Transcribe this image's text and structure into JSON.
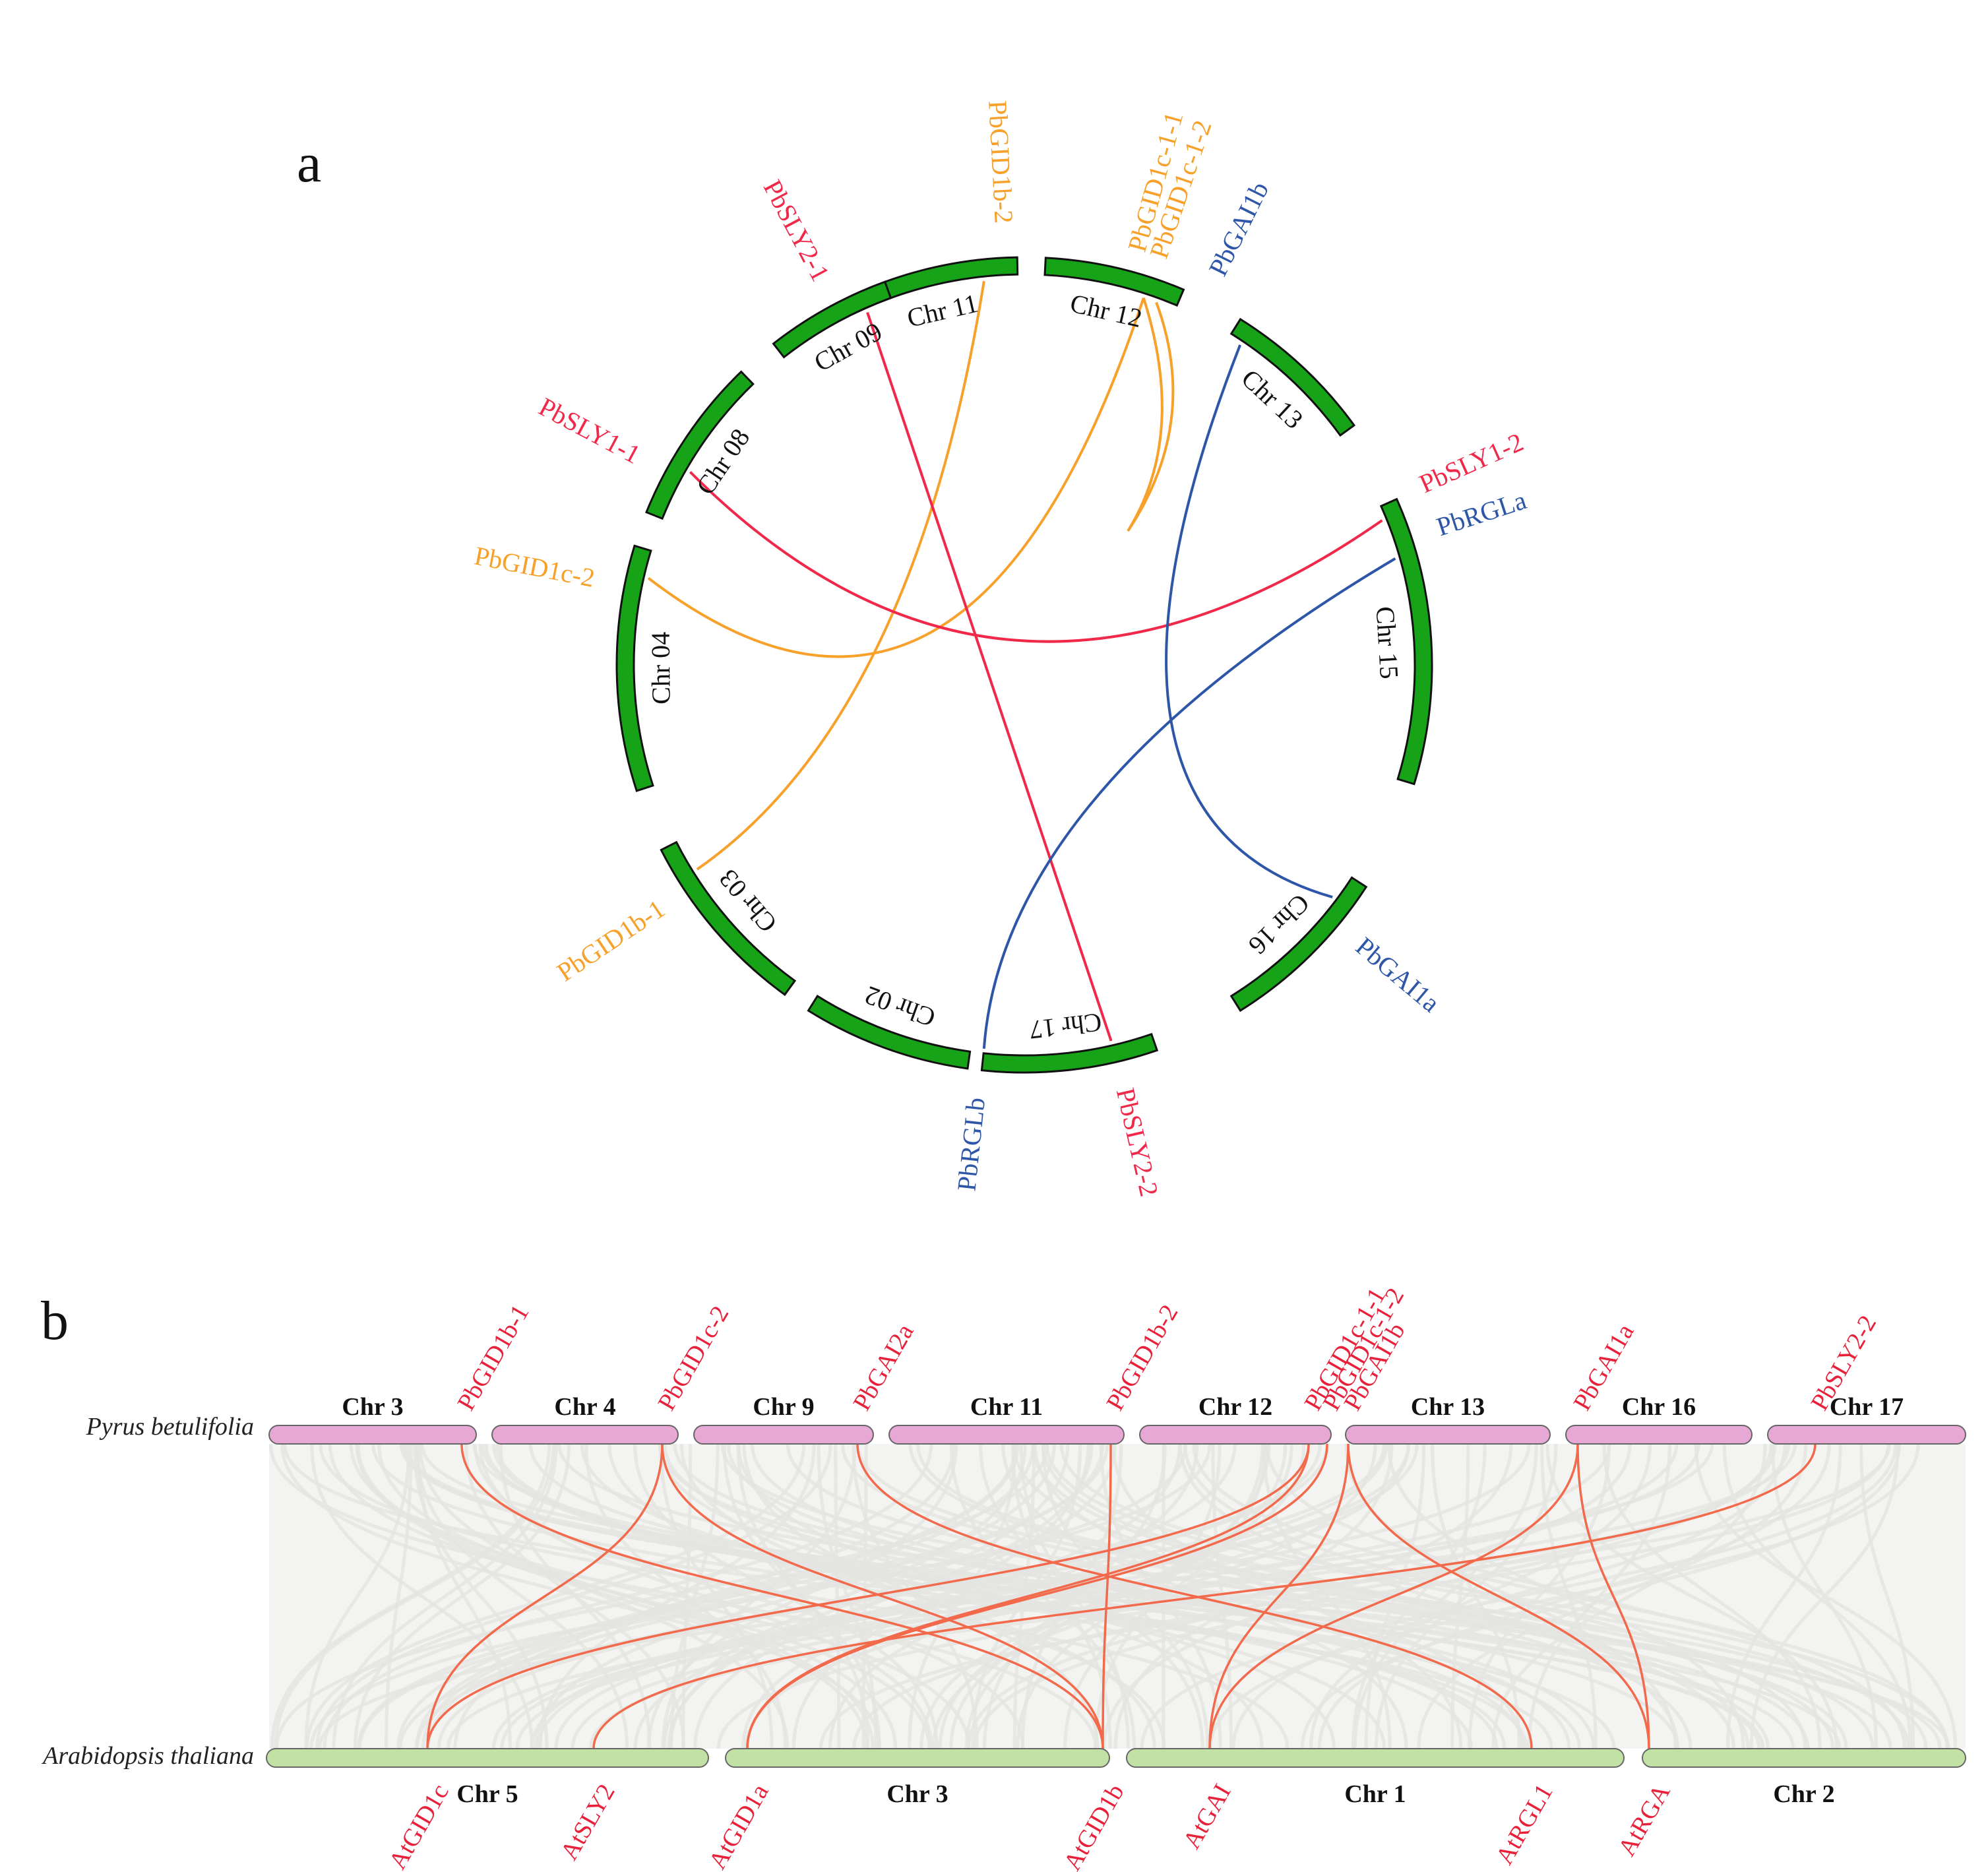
{
  "colors": {
    "gid1": "#f7a12b",
    "sly": "#f0284a",
    "della": "#2e56a8",
    "chrA": "#17a317",
    "pyrus_bar": "#e7a8d6",
    "arab_bar": "#c2e2a5",
    "synteny_bg": "#e4e4e2",
    "link_b": "#f26a4b",
    "label_b": "#e8203a"
  },
  "panel_a": {
    "label": "a",
    "chromosomes": [
      {
        "id": "Chr 11",
        "label": "Chr 11"
      },
      {
        "id": "Chr 12",
        "label": "Chr 12"
      },
      {
        "id": "Chr 13",
        "label": "Chr 13"
      },
      {
        "id": "Chr 15",
        "label": "Chr 15"
      },
      {
        "id": "Chr 16",
        "label": "Chr 16"
      },
      {
        "id": "Chr 17",
        "label": "Chr 17"
      },
      {
        "id": "Chr 02",
        "label": "Chr 02"
      },
      {
        "id": "Chr 03",
        "label": "Chr 03"
      },
      {
        "id": "Chr 04",
        "label": "Chr 04"
      },
      {
        "id": "Chr 08",
        "label": "Chr 08"
      },
      {
        "id": "Chr 09",
        "label": "Chr 09"
      }
    ],
    "genes": [
      {
        "name": "PbGID1b-2",
        "group": "gid1"
      },
      {
        "name": "PbGID1c-1-1",
        "group": "gid1"
      },
      {
        "name": "PbGID1c-1-2",
        "group": "gid1"
      },
      {
        "name": "PbGAI1b",
        "group": "della"
      },
      {
        "name": "PbSLY1-2",
        "group": "sly"
      },
      {
        "name": "PbRGLa",
        "group": "della"
      },
      {
        "name": "PbGAI1a",
        "group": "della"
      },
      {
        "name": "PbSLY2-2",
        "group": "sly"
      },
      {
        "name": "PbRGLb",
        "group": "della"
      },
      {
        "name": "PbGID1b-1",
        "group": "gid1"
      },
      {
        "name": "PbGID1c-2",
        "group": "gid1"
      },
      {
        "name": "PbSLY1-1",
        "group": "sly"
      },
      {
        "name": "PbSLY2-1",
        "group": "sly"
      }
    ],
    "links": [
      {
        "from": "PbGID1b-2",
        "to": "PbGID1b-1",
        "group": "gid1"
      },
      {
        "from": "PbGID1c-1-1",
        "to": "PbGID1c-2",
        "group": "gid1"
      },
      {
        "from": "PbGID1c-1-1",
        "to": "PbGID1c-1-2",
        "group": "gid1"
      },
      {
        "from": "PbSLY2-1",
        "to": "PbSLY2-2",
        "group": "sly"
      },
      {
        "from": "PbSLY1-1",
        "to": "PbSLY1-2",
        "group": "sly"
      },
      {
        "from": "PbGAI1b",
        "to": "PbGAI1a",
        "group": "della"
      },
      {
        "from": "PbRGLa",
        "to": "PbRGLb",
        "group": "della"
      }
    ]
  },
  "panel_b": {
    "label": "b",
    "species_top": "Pyrus betulifolia",
    "species_bottom": "Arabidopsis thaliana",
    "top_chromosomes": [
      {
        "id": "Chr 3",
        "label": "Chr 3"
      },
      {
        "id": "Chr 4",
        "label": "Chr 4"
      },
      {
        "id": "Chr 9",
        "label": "Chr 9"
      },
      {
        "id": "Chr 11",
        "label": "Chr 11"
      },
      {
        "id": "Chr 12",
        "label": "Chr 12"
      },
      {
        "id": "Chr 13",
        "label": "Chr 13"
      },
      {
        "id": "Chr 16",
        "label": "Chr 16"
      },
      {
        "id": "Chr 17",
        "label": "Chr 17"
      }
    ],
    "bottom_chromosomes": [
      {
        "id": "Chr 5",
        "label": "Chr 5"
      },
      {
        "id": "Chr 3",
        "label": "Chr 3"
      },
      {
        "id": "Chr 1",
        "label": "Chr 1"
      },
      {
        "id": "Chr 2",
        "label": "Chr 2"
      }
    ],
    "top_genes": [
      "PbGID1b-1",
      "PbGID1c-2",
      "PbGAI2a",
      "PbGID1b-2",
      "PbGID1c-1-1",
      "PbGID1c-1-2",
      "PbGAI1b",
      "PbGAI1a",
      "PbSLY2-2"
    ],
    "bottom_genes": [
      "AtGID1c",
      "AtSLY2",
      "AtGID1a",
      "AtGID1b",
      "AtGAI",
      "AtRGL1",
      "AtRGA"
    ],
    "links": [
      {
        "from": "PbGID1b-1",
        "to": "AtGID1b"
      },
      {
        "from": "PbGID1c-2",
        "to": "AtGID1c"
      },
      {
        "from": "PbGID1c-2",
        "to": "AtGID1b"
      },
      {
        "from": "PbGAI2a",
        "to": "AtRGL1"
      },
      {
        "from": "PbGID1b-2",
        "to": "AtGID1b"
      },
      {
        "from": "PbGID1c-1-1",
        "to": "AtGID1c"
      },
      {
        "from": "PbGID1c-1-2",
        "to": "AtGID1a"
      },
      {
        "from": "PbGAI1b",
        "to": "AtGAI"
      },
      {
        "from": "PbGAI1b",
        "to": "AtRGA"
      },
      {
        "from": "PbGAI1a",
        "to": "AtGAI"
      },
      {
        "from": "PbGAI1a",
        "to": "AtRGA"
      },
      {
        "from": "PbSLY2-2",
        "to": "AtSLY2"
      },
      {
        "from": "PbGID1c-1-1",
        "to": "AtGID1a"
      }
    ]
  }
}
